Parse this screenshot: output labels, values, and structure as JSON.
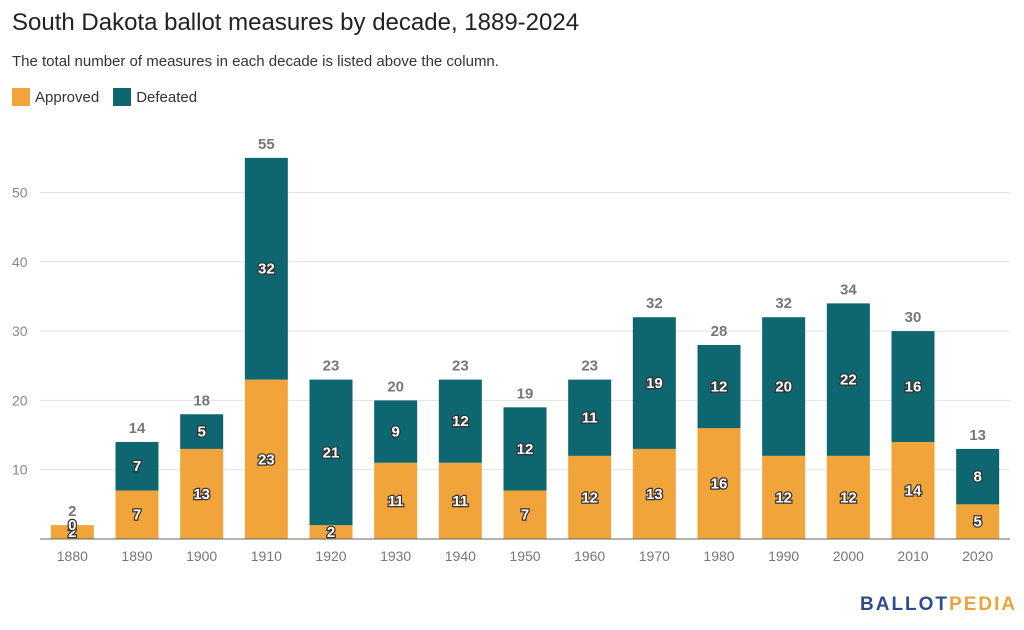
{
  "title": "South Dakota ballot measures by decade, 1889-2024",
  "subtitle": "The total number of measures in each decade is listed above the column.",
  "legend": [
    {
      "label": "Approved",
      "color": "#f0a43a"
    },
    {
      "label": "Defeated",
      "color": "#0e6670"
    }
  ],
  "logo": {
    "part1": "BALLOT",
    "part2": "PEDIA"
  },
  "chart_data": {
    "type": "bar",
    "stacked": true,
    "categories": [
      "1880",
      "1890",
      "1900",
      "1910",
      "1920",
      "1930",
      "1940",
      "1950",
      "1960",
      "1970",
      "1980",
      "1990",
      "2000",
      "2010",
      "2020"
    ],
    "series": [
      {
        "name": "Approved",
        "color": "#f0a43a",
        "values": [
          2,
          7,
          13,
          23,
          2,
          11,
          11,
          7,
          12,
          13,
          16,
          12,
          12,
          14,
          5
        ]
      },
      {
        "name": "Defeated",
        "color": "#0e6670",
        "values": [
          0,
          7,
          5,
          32,
          21,
          9,
          12,
          12,
          11,
          19,
          12,
          20,
          22,
          16,
          8
        ]
      }
    ],
    "totals": [
      2,
      14,
      18,
      55,
      23,
      20,
      23,
      19,
      23,
      32,
      28,
      32,
      34,
      30,
      13
    ],
    "yticks": [
      10,
      20,
      30,
      40,
      50
    ],
    "ylim": [
      0,
      55
    ],
    "grid": true,
    "legend_position": "top-left"
  }
}
